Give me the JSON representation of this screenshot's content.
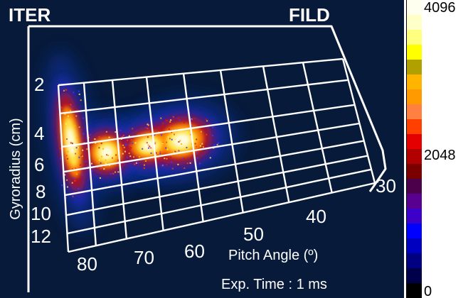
{
  "labels": {
    "left_corner": "ITER",
    "right_corner": "FILD",
    "y_axis_title": "Gyroradius (cm)",
    "x_axis_title": "Pitch Angle (º)",
    "exposure": "Exp. Time : 1 ms"
  },
  "gyroradius_ticks": [
    "2",
    "4",
    "6",
    "8",
    "10",
    "12"
  ],
  "pitch_angle_ticks": [
    "80",
    "70",
    "60",
    "50",
    "40",
    "30"
  ],
  "colorbar": {
    "max_label": "4096",
    "mid_label": "2048",
    "min_label": "0",
    "colors_bottom_to_top": [
      "#000000",
      "#00004a",
      "#000080",
      "#0000c0",
      "#0000ff",
      "#3c00c8",
      "#5a0090",
      "#4c004c",
      "#7a0000",
      "#b00000",
      "#e40000",
      "#ff4000",
      "#ff8040",
      "#ff9a00",
      "#ffb400",
      "#b0a000",
      "#ffff00",
      "#ffff80",
      "#ffffc8",
      "#fffff0"
    ]
  }
}
